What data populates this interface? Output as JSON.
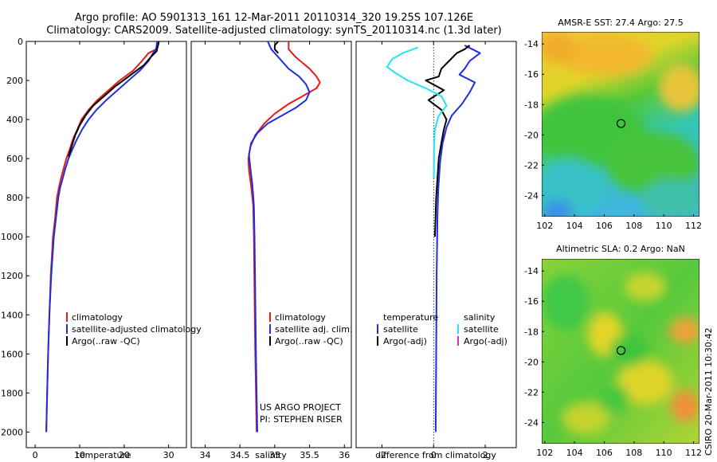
{
  "figure": {
    "title_line1": "Argo profile: AO 5901313_161 12-Mar-2011 20110314_320 19.25S 107.126E",
    "title_line2": "Climatology: CARS2009. Satellite-adjusted climatology: synTS_20110314.nc (1.3d later)",
    "side_label": "CSIRO 20-Mar-2011 10:30:42",
    "credit_line1": "US ARGO PROJECT",
    "credit_line2": "PI: STEPHEN RISER"
  },
  "colors": {
    "climatology": "#e41a1c",
    "satellite": "#1f2fe0",
    "argo": "#000000",
    "satellite_salinity": "#22e5ee",
    "argo_adj_salinity": "#cc33cc"
  },
  "chart_data": [
    {
      "type": "line",
      "id": "temperature",
      "xlabel": "temperature",
      "ylabel": "",
      "xlim": [
        -2,
        34
      ],
      "ylim": [
        0,
        2080
      ],
      "y_reversed": true,
      "xticks": [
        0,
        10,
        20,
        30
      ],
      "yticks": [
        0,
        200,
        400,
        600,
        800,
        1000,
        1200,
        1400,
        1600,
        1800,
        2000
      ],
      "legend": [
        "climatology",
        "satellite-adjusted climatology",
        "Argo(..raw -QC)"
      ],
      "series": [
        {
          "name": "climatology",
          "color": "#e41a1c",
          "x": [
            27.4,
            27.4,
            27.2,
            25.5,
            24,
            22,
            19,
            16.5,
            14,
            12,
            10.4,
            9.5,
            8.5,
            7.8,
            7,
            6.4,
            5.8,
            5.3,
            4.9,
            4.5,
            4,
            3.5,
            3.2,
            2.9,
            2.7,
            2.5
          ],
          "y": [
            0,
            20,
            40,
            60,
            100,
            150,
            200,
            250,
            300,
            350,
            400,
            450,
            500,
            550,
            600,
            650,
            700,
            750,
            800,
            900,
            1000,
            1200,
            1400,
            1600,
            1800,
            2000
          ]
        },
        {
          "name": "satellite-adjusted climatology",
          "color": "#1f2fe0",
          "x": [
            27.4,
            27.3,
            27.2,
            26.5,
            25.5,
            23.5,
            21,
            18.5,
            16,
            13.8,
            12,
            10.6,
            9.4,
            8.4,
            7.5,
            6.8,
            6.2,
            5.6,
            5.2,
            4.7,
            4.2,
            3.6,
            3.2,
            2.9,
            2.7,
            2.5
          ],
          "y": [
            0,
            20,
            40,
            60,
            100,
            150,
            200,
            250,
            300,
            350,
            400,
            450,
            500,
            550,
            600,
            650,
            700,
            750,
            800,
            900,
            1000,
            1200,
            1400,
            1600,
            1800,
            2000
          ]
        },
        {
          "name": "Argo(..raw -QC)",
          "color": "#000000",
          "x": [
            27.8,
            27.7,
            27.5,
            27.3,
            26,
            24.5,
            21,
            18,
            15.5,
            13,
            11.3,
            10,
            9,
            8.3,
            7.5
          ],
          "y": [
            0,
            15,
            30,
            50,
            80,
            120,
            180,
            230,
            280,
            330,
            380,
            430,
            480,
            530,
            590
          ]
        }
      ]
    },
    {
      "type": "line",
      "id": "salinity",
      "xlabel": "salinity",
      "ylabel": "",
      "xlim": [
        33.8,
        36.1
      ],
      "ylim": [
        0,
        2080
      ],
      "y_reversed": true,
      "xticks": [
        34,
        34.5,
        35,
        35.5,
        36
      ],
      "legend": [
        "climatology",
        "satellite adj. clim.",
        "Argo(..raw -QC)"
      ],
      "series": [
        {
          "name": "climatology",
          "color": "#e41a1c",
          "x": [
            35.2,
            35.2,
            35.3,
            35.5,
            35.6,
            35.65,
            35.6,
            35.4,
            35.2,
            35,
            34.85,
            34.72,
            34.65,
            34.62,
            34.63,
            34.66,
            34.69,
            34.7,
            34.71,
            34.72,
            34.73,
            34.74
          ],
          "y": [
            0,
            40,
            80,
            140,
            180,
            210,
            240,
            280,
            320,
            370,
            420,
            480,
            540,
            600,
            660,
            740,
            840,
            1000,
            1300,
            1600,
            1800,
            2000
          ]
        },
        {
          "name": "satellite adj. clim.",
          "color": "#1f2fe0",
          "x": [
            34.9,
            34.95,
            35.05,
            35.2,
            35.35,
            35.45,
            35.5,
            35.45,
            35.3,
            35.1,
            34.9,
            34.75,
            34.66,
            34.63,
            34.65,
            34.68,
            34.7,
            34.71,
            34.72,
            34.73,
            34.74,
            34.75
          ],
          "y": [
            0,
            40,
            80,
            140,
            180,
            220,
            260,
            300,
            340,
            380,
            420,
            470,
            520,
            580,
            650,
            740,
            840,
            1000,
            1300,
            1600,
            1800,
            2000
          ]
        },
        {
          "name": "Argo(..raw -QC)",
          "color": "#000000",
          "x": [
            35.05,
            35.0,
            35.0,
            35.05
          ],
          "y": [
            0,
            20,
            40,
            60
          ]
        }
      ]
    },
    {
      "type": "line",
      "id": "difference",
      "xlabel": "difference from climatology",
      "ylabel": "",
      "xlim": [
        -3,
        3.2
      ],
      "ylim": [
        0,
        2080
      ],
      "y_reversed": true,
      "xticks": [
        -2,
        0,
        2
      ],
      "legend_temperature": [
        "temperature",
        "satellite",
        "Argo(-adj)"
      ],
      "legend_salinity": [
        "salinity",
        "satellite",
        "Argo(-adj)"
      ],
      "series": [
        {
          "name": "temperature satellite",
          "color": "#1f2fe0",
          "x": [
            1.2,
            1.5,
            1.8,
            1.4,
            1.2,
            1.0,
            1.6,
            1.4,
            1.1,
            0.7,
            0.5,
            0.35,
            0.25,
            0.18,
            0.15,
            0.12,
            0.1,
            0.08
          ],
          "y": [
            20,
            40,
            60,
            100,
            140,
            170,
            210,
            260,
            320,
            380,
            440,
            520,
            620,
            760,
            900,
            1200,
            1600,
            2000
          ]
        },
        {
          "name": "temperature Argo(-adj)",
          "color": "#000000",
          "x": [
            1.4,
            1.2,
            0.9,
            0.6,
            0.3,
            0.2,
            -0.3,
            0.4,
            -0.2,
            0.3,
            0.5,
            0.4,
            0.3,
            0.2,
            0.1,
            0.05
          ],
          "y": [
            20,
            40,
            60,
            100,
            140,
            180,
            200,
            250,
            300,
            350,
            400,
            450,
            520,
            600,
            800,
            1000
          ]
        },
        {
          "name": "salinity satellite",
          "color": "#22e5ee",
          "x": [
            -0.6,
            -1.2,
            -1.6,
            -1.8,
            -1.5,
            -1.0,
            -0.3,
            0.3,
            0.5,
            0.2,
            0.05,
            0.02,
            0.01
          ],
          "y": [
            30,
            60,
            90,
            130,
            160,
            200,
            240,
            280,
            330,
            380,
            450,
            520,
            700
          ]
        },
        {
          "name": "salinity Argo(-adj)",
          "color": "#cc33cc",
          "x": [],
          "y": []
        }
      ]
    },
    {
      "type": "heatmap",
      "id": "amsre-sst",
      "title": "AMSR-E SST: 27.4 Argo: 27.5",
      "xlim": [
        101.8,
        112.4
      ],
      "ylim": [
        -25.4,
        -13.2
      ],
      "xticks": [
        102,
        104,
        106,
        108,
        110,
        112
      ],
      "yticks": [
        -14,
        -16,
        -18,
        -20,
        -22,
        -24
      ],
      "marker": {
        "lon": 107.13,
        "lat": -19.25
      }
    },
    {
      "type": "heatmap",
      "id": "altimetric-sla",
      "title": "Altimetric SLA: 0.2 Argo: NaN",
      "xlim": [
        101.8,
        112.4
      ],
      "ylim": [
        -25.4,
        -13.2
      ],
      "xticks": [
        102,
        104,
        106,
        108,
        110,
        112
      ],
      "yticks": [
        -14,
        -16,
        -18,
        -20,
        -22,
        -24
      ],
      "marker": {
        "lon": 107.13,
        "lat": -19.25
      }
    }
  ]
}
